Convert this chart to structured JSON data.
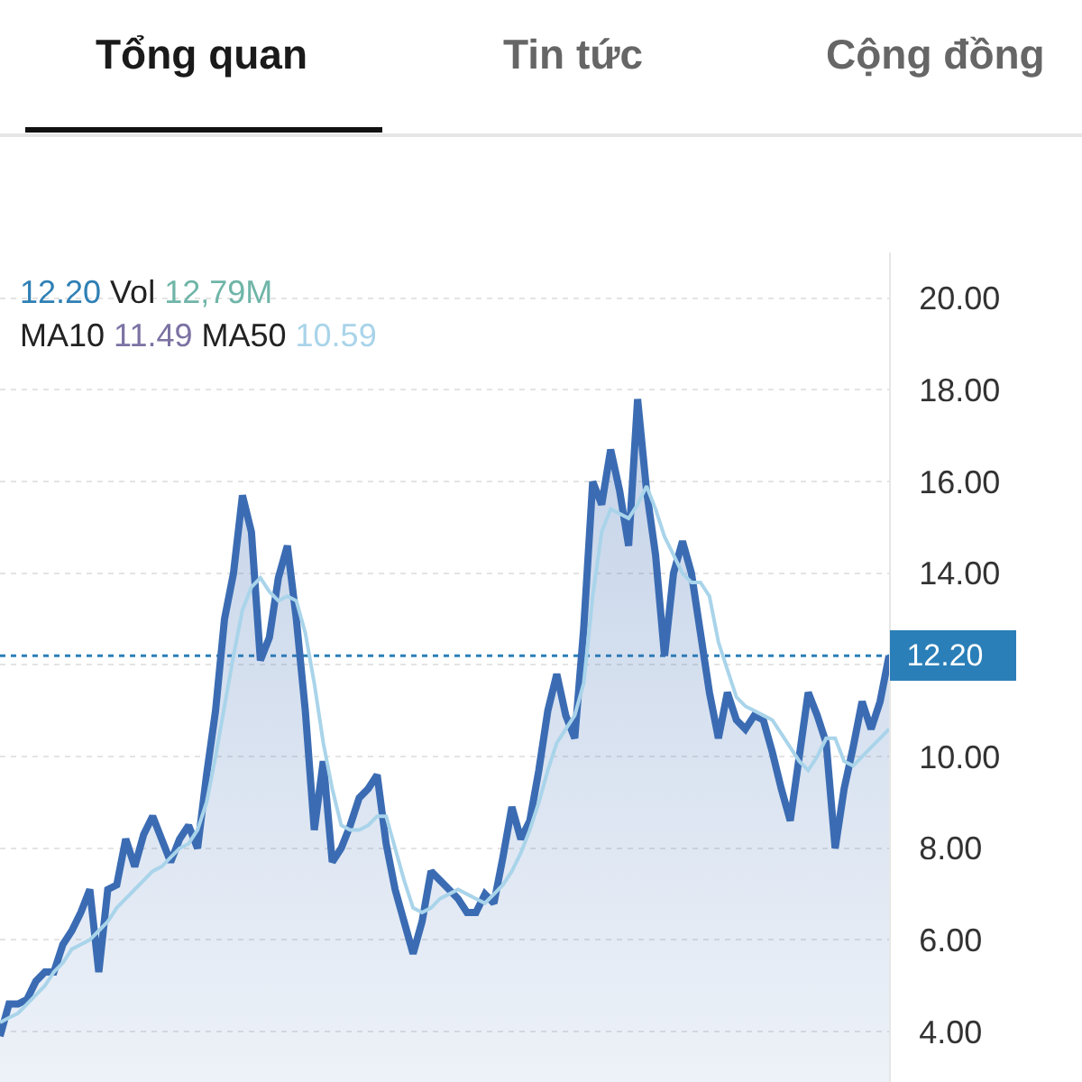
{
  "chart_data": {
    "type": "area",
    "annotations": [
      "Tổng quan",
      "Tin tức",
      "Cộng đồng",
      "12.20 Vol 12,79M",
      "MA10 11.49 MA50 10.59"
    ],
    "categories": [
      null,
      null,
      null,
      null,
      null,
      null,
      null,
      null,
      null,
      null,
      null,
      null,
      null,
      null,
      null,
      null,
      null,
      null,
      null,
      null,
      null,
      null,
      null,
      null,
      null,
      null,
      null,
      null,
      null,
      null,
      null,
      null,
      null,
      null,
      null,
      null,
      null,
      null,
      null,
      null,
      null,
      null,
      null,
      null,
      null,
      null,
      null,
      null,
      null,
      null,
      null,
      null,
      null,
      null,
      null,
      null,
      null,
      null,
      null,
      null,
      null,
      null,
      null,
      null,
      null,
      null,
      null,
      null,
      null,
      null,
      null,
      null,
      null,
      null,
      null,
      null,
      null,
      null,
      null,
      null,
      null,
      null,
      null,
      null,
      null,
      null,
      null,
      null,
      null,
      null,
      null,
      null,
      null,
      null,
      null,
      null,
      null,
      null,
      null,
      null
    ],
    "series": [
      {
        "color": "#3b6cb3",
        "values": [
          3.9,
          4.6,
          4.6,
          4.7,
          5.1,
          5.3,
          5.3,
          5.9,
          6.2,
          6.6,
          7.1,
          5.3,
          7.1,
          7.2,
          8.2,
          7.6,
          8.3,
          8.7,
          8.2,
          7.7,
          8.2,
          8.5,
          8.0,
          9.6,
          11.0,
          13.0,
          14.0,
          15.7,
          14.9,
          12.1,
          12.6,
          13.9,
          14.6,
          13.0,
          11.0,
          8.4,
          9.9,
          7.7,
          8.0,
          8.5,
          9.1,
          9.3,
          9.6,
          8.1,
          7.1,
          6.4,
          5.7,
          6.4,
          7.5,
          7.3,
          7.1,
          6.9,
          6.6,
          6.6,
          7.0,
          6.8,
          7.8,
          8.9,
          8.2,
          8.6,
          9.7,
          11.0,
          11.8,
          10.9,
          10.4,
          12.8,
          16.0,
          15.5,
          16.7,
          15.8,
          14.6,
          17.8,
          15.8,
          14.4,
          12.2,
          14.0,
          14.7,
          14.0,
          12.7,
          11.4,
          10.4,
          11.4,
          10.8,
          10.6,
          10.9,
          10.8,
          10.1,
          9.3,
          8.6,
          10.0,
          11.4,
          10.9,
          10.3,
          8.0,
          9.3,
          10.2,
          11.2,
          10.6,
          11.2,
          12.2
        ]
      },
      {
        "type": "line",
        "color": "#a9d4ea",
        "values": [
          4.2,
          4.3,
          4.4,
          4.6,
          4.8,
          5.0,
          5.3,
          5.5,
          5.8,
          5.9,
          6.0,
          6.2,
          6.4,
          6.7,
          6.9,
          7.1,
          7.3,
          7.5,
          7.6,
          7.8,
          8.0,
          8.1,
          8.4,
          9.0,
          10.0,
          11.1,
          12.2,
          13.2,
          13.7,
          13.9,
          13.6,
          13.4,
          13.5,
          13.4,
          12.7,
          11.6,
          10.3,
          9.3,
          8.5,
          8.4,
          8.4,
          8.5,
          8.7,
          8.7,
          8.0,
          7.3,
          6.7,
          6.6,
          6.7,
          6.9,
          7.0,
          7.1,
          7.0,
          6.9,
          6.8,
          7.0,
          7.2,
          7.5,
          7.9,
          8.4,
          9.0,
          9.7,
          10.3,
          10.6,
          10.9,
          11.6,
          13.5,
          14.9,
          15.4,
          15.3,
          15.2,
          15.5,
          15.9,
          15.4,
          14.8,
          14.4,
          14.0,
          13.8,
          13.8,
          13.5,
          12.5,
          11.9,
          11.3,
          11.1,
          11.0,
          10.9,
          10.8,
          10.5,
          10.2,
          9.9,
          9.7,
          10.0,
          10.4,
          10.4,
          9.9,
          9.8,
          10.0,
          10.2,
          10.4,
          10.6
        ]
      }
    ],
    "ylim": [
      2.9,
      21.0
    ],
    "yticks": [
      {
        "value": 4,
        "label": "4.00"
      },
      {
        "value": 6,
        "label": "6.00"
      },
      {
        "value": 8,
        "label": "8.00"
      },
      {
        "value": 10,
        "label": "10.00"
      },
      {
        "value": 12,
        "label": null
      },
      {
        "value": 14,
        "label": "14.00"
      },
      {
        "value": 16,
        "label": "16.00"
      },
      {
        "value": 18,
        "label": "18.00"
      },
      {
        "value": 20,
        "label": "20.00"
      }
    ],
    "ref_lines": [
      {
        "axis": "y",
        "value": 12.2,
        "label": "12.20",
        "color": "#2b7fb8",
        "line_style": "dotted"
      }
    ],
    "grid": "y",
    "tick_labels": "y"
  }
}
